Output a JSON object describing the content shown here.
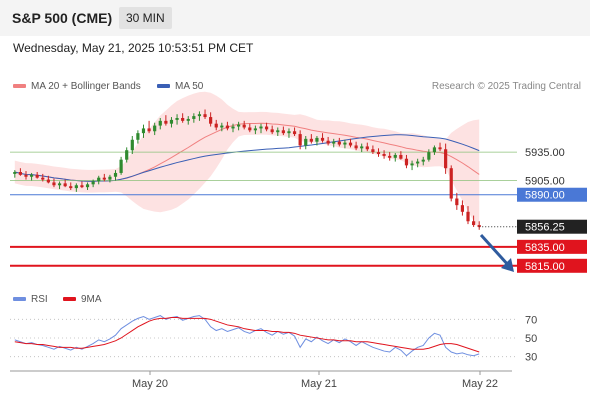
{
  "header": {
    "title": "S&P 500 (CME)",
    "timeframe": "30 MIN"
  },
  "datetime": "Wednesday, May 21, 2025 10:53:51 PM CET",
  "legend": {
    "ma20_label": "MA 20 + Bollinger Bands",
    "ma50_label": "MA 50",
    "credit": "Research © 2025 Trading Central"
  },
  "rsi_legend": {
    "rsi_label": "RSI",
    "ma_label": "9MA"
  },
  "colors": {
    "ma20": "#f08080",
    "bollinger_fill": "#fde2e2",
    "ma50": "#3a5fb5",
    "candle_up": "#2f8a2f",
    "candle_down": "#cc2222",
    "support_green": "#8cc17a",
    "pivot_blue": "#4a78d6",
    "target_red": "#e0141e",
    "rsi": "#6f8fe0",
    "rsi_ma": "#e0141e",
    "arrow": "#2f5b9e"
  },
  "chart_data": {
    "type": "candlestick",
    "x_labels": [
      "May 20",
      "May 21",
      "May 22"
    ],
    "ylim": [
      5800,
      5990
    ],
    "levels": [
      {
        "value": 5935.0,
        "label": "5935.00",
        "style": "green-line"
      },
      {
        "value": 5905.0,
        "label": "5905.00",
        "style": "green-line"
      },
      {
        "value": 5890.0,
        "label": "5890.00",
        "style": "blue-line"
      },
      {
        "value": 5835.0,
        "label": "5835.00",
        "style": "red-line"
      },
      {
        "value": 5815.0,
        "label": "5815.00",
        "style": "red-line"
      }
    ],
    "last_price": {
      "value": 5856.25,
      "label": "5856.25"
    },
    "series": [
      {
        "name": "MA 20 + Bollinger Bands",
        "role": "ma20"
      },
      {
        "name": "MA 50",
        "role": "ma50"
      }
    ],
    "candles": [
      [
        5912,
        5916,
        5908,
        5914
      ],
      [
        5914,
        5918,
        5910,
        5911
      ],
      [
        5911,
        5915,
        5906,
        5909
      ],
      [
        5909,
        5913,
        5905,
        5911
      ],
      [
        5911,
        5914,
        5907,
        5908
      ],
      [
        5908,
        5912,
        5904,
        5906
      ],
      [
        5906,
        5910,
        5902,
        5903
      ],
      [
        5903,
        5907,
        5898,
        5900
      ],
      [
        5900,
        5904,
        5896,
        5902
      ],
      [
        5902,
        5906,
        5898,
        5899
      ],
      [
        5899,
        5903,
        5895,
        5897
      ],
      [
        5897,
        5902,
        5893,
        5900
      ],
      [
        5900,
        5904,
        5897,
        5898
      ],
      [
        5898,
        5903,
        5895,
        5901
      ],
      [
        5901,
        5906,
        5898,
        5904
      ],
      [
        5904,
        5910,
        5901,
        5908
      ],
      [
        5908,
        5912,
        5904,
        5906
      ],
      [
        5906,
        5911,
        5903,
        5909
      ],
      [
        5909,
        5916,
        5905,
        5913
      ],
      [
        5913,
        5930,
        5911,
        5927
      ],
      [
        5927,
        5940,
        5924,
        5937
      ],
      [
        5937,
        5952,
        5933,
        5948
      ],
      [
        5948,
        5958,
        5944,
        5955
      ],
      [
        5955,
        5964,
        5950,
        5960
      ],
      [
        5960,
        5968,
        5955,
        5957
      ],
      [
        5957,
        5966,
        5953,
        5963
      ],
      [
        5963,
        5971,
        5959,
        5968
      ],
      [
        5968,
        5974,
        5963,
        5965
      ],
      [
        5965,
        5972,
        5961,
        5969
      ],
      [
        5969,
        5975,
        5964,
        5971
      ],
      [
        5971,
        5976,
        5966,
        5968
      ],
      [
        5968,
        5973,
        5964,
        5970
      ],
      [
        5970,
        5976,
        5966,
        5973
      ],
      [
        5973,
        5978,
        5968,
        5975
      ],
      [
        5975,
        5980,
        5970,
        5972
      ],
      [
        5972,
        5977,
        5962,
        5965
      ],
      [
        5965,
        5969,
        5958,
        5961
      ],
      [
        5961,
        5966,
        5957,
        5963
      ],
      [
        5963,
        5967,
        5958,
        5960
      ],
      [
        5960,
        5965,
        5956,
        5962
      ],
      [
        5962,
        5967,
        5958,
        5964
      ],
      [
        5964,
        5968,
        5959,
        5961
      ],
      [
        5961,
        5965,
        5956,
        5958
      ],
      [
        5958,
        5963,
        5954,
        5960
      ],
      [
        5960,
        5965,
        5955,
        5962
      ],
      [
        5962,
        5966,
        5957,
        5959
      ],
      [
        5959,
        5963,
        5954,
        5956
      ],
      [
        5956,
        5961,
        5952,
        5958
      ],
      [
        5958,
        5962,
        5953,
        5955
      ],
      [
        5955,
        5960,
        5950,
        5957
      ],
      [
        5957,
        5961,
        5952,
        5954
      ],
      [
        5954,
        5958,
        5938,
        5942
      ],
      [
        5942,
        5952,
        5938,
        5949
      ],
      [
        5949,
        5954,
        5944,
        5946
      ],
      [
        5946,
        5952,
        5942,
        5950
      ],
      [
        5950,
        5955,
        5945,
        5947
      ],
      [
        5947,
        5951,
        5942,
        5944
      ],
      [
        5944,
        5949,
        5940,
        5946
      ],
      [
        5946,
        5950,
        5941,
        5943
      ],
      [
        5943,
        5948,
        5939,
        5945
      ],
      [
        5945,
        5949,
        5940,
        5942
      ],
      [
        5942,
        5946,
        5937,
        5939
      ],
      [
        5939,
        5944,
        5935,
        5941
      ],
      [
        5941,
        5945,
        5936,
        5938
      ],
      [
        5938,
        5942,
        5933,
        5935
      ],
      [
        5935,
        5939,
        5930,
        5933
      ],
      [
        5933,
        5937,
        5928,
        5931
      ],
      [
        5931,
        5935,
        5926,
        5929
      ],
      [
        5929,
        5934,
        5925,
        5932
      ],
      [
        5932,
        5936,
        5927,
        5928
      ],
      [
        5928,
        5932,
        5918,
        5921
      ],
      [
        5921,
        5926,
        5916,
        5923
      ],
      [
        5923,
        5928,
        5919,
        5925
      ],
      [
        5925,
        5930,
        5921,
        5927
      ],
      [
        5927,
        5938,
        5925,
        5935
      ],
      [
        5935,
        5942,
        5932,
        5940
      ],
      [
        5940,
        5945,
        5936,
        5938
      ],
      [
        5938,
        5944,
        5912,
        5918
      ],
      [
        5918,
        5921,
        5883,
        5886
      ],
      [
        5886,
        5892,
        5874,
        5879
      ],
      [
        5879,
        5884,
        5868,
        5872
      ],
      [
        5872,
        5878,
        5859,
        5862
      ],
      [
        5862,
        5868,
        5856,
        5858
      ],
      [
        5858,
        5862,
        5853,
        5856
      ]
    ],
    "rsi_panel": {
      "ticks": [
        70,
        50,
        30
      ],
      "ylim": [
        20,
        80
      ],
      "rsi": [
        48,
        46,
        44,
        45,
        43,
        42,
        40,
        38,
        41,
        39,
        37,
        40,
        38,
        41,
        44,
        48,
        46,
        49,
        53,
        60,
        64,
        68,
        71,
        73,
        70,
        72,
        74,
        70,
        72,
        73,
        69,
        71,
        73,
        74,
        70,
        62,
        58,
        60,
        57,
        59,
        61,
        57,
        55,
        58,
        60,
        56,
        53,
        57,
        54,
        56,
        52,
        40,
        49,
        46,
        51,
        47,
        44,
        48,
        45,
        49,
        46,
        42,
        46,
        43,
        40,
        38,
        36,
        35,
        40,
        37,
        31,
        36,
        40,
        42,
        50,
        55,
        53,
        40,
        35,
        33,
        34,
        32,
        31,
        33
      ],
      "ma": [
        46,
        45,
        44,
        44,
        43,
        43,
        42,
        41,
        40,
        40,
        40,
        39,
        39,
        40,
        41,
        42,
        43,
        45,
        47,
        50,
        54,
        58,
        62,
        65,
        68,
        70,
        71,
        71,
        72,
        72,
        71,
        71,
        71,
        71,
        71,
        70,
        68,
        66,
        64,
        63,
        62,
        60,
        59,
        58,
        58,
        58,
        57,
        57,
        56,
        56,
        55,
        53,
        52,
        51,
        50,
        49,
        48,
        48,
        47,
        47,
        47,
        46,
        46,
        46,
        45,
        44,
        43,
        42,
        41,
        40,
        39,
        38,
        38,
        38,
        39,
        41,
        43,
        44,
        44,
        43,
        41,
        39,
        37,
        35
      ]
    }
  }
}
